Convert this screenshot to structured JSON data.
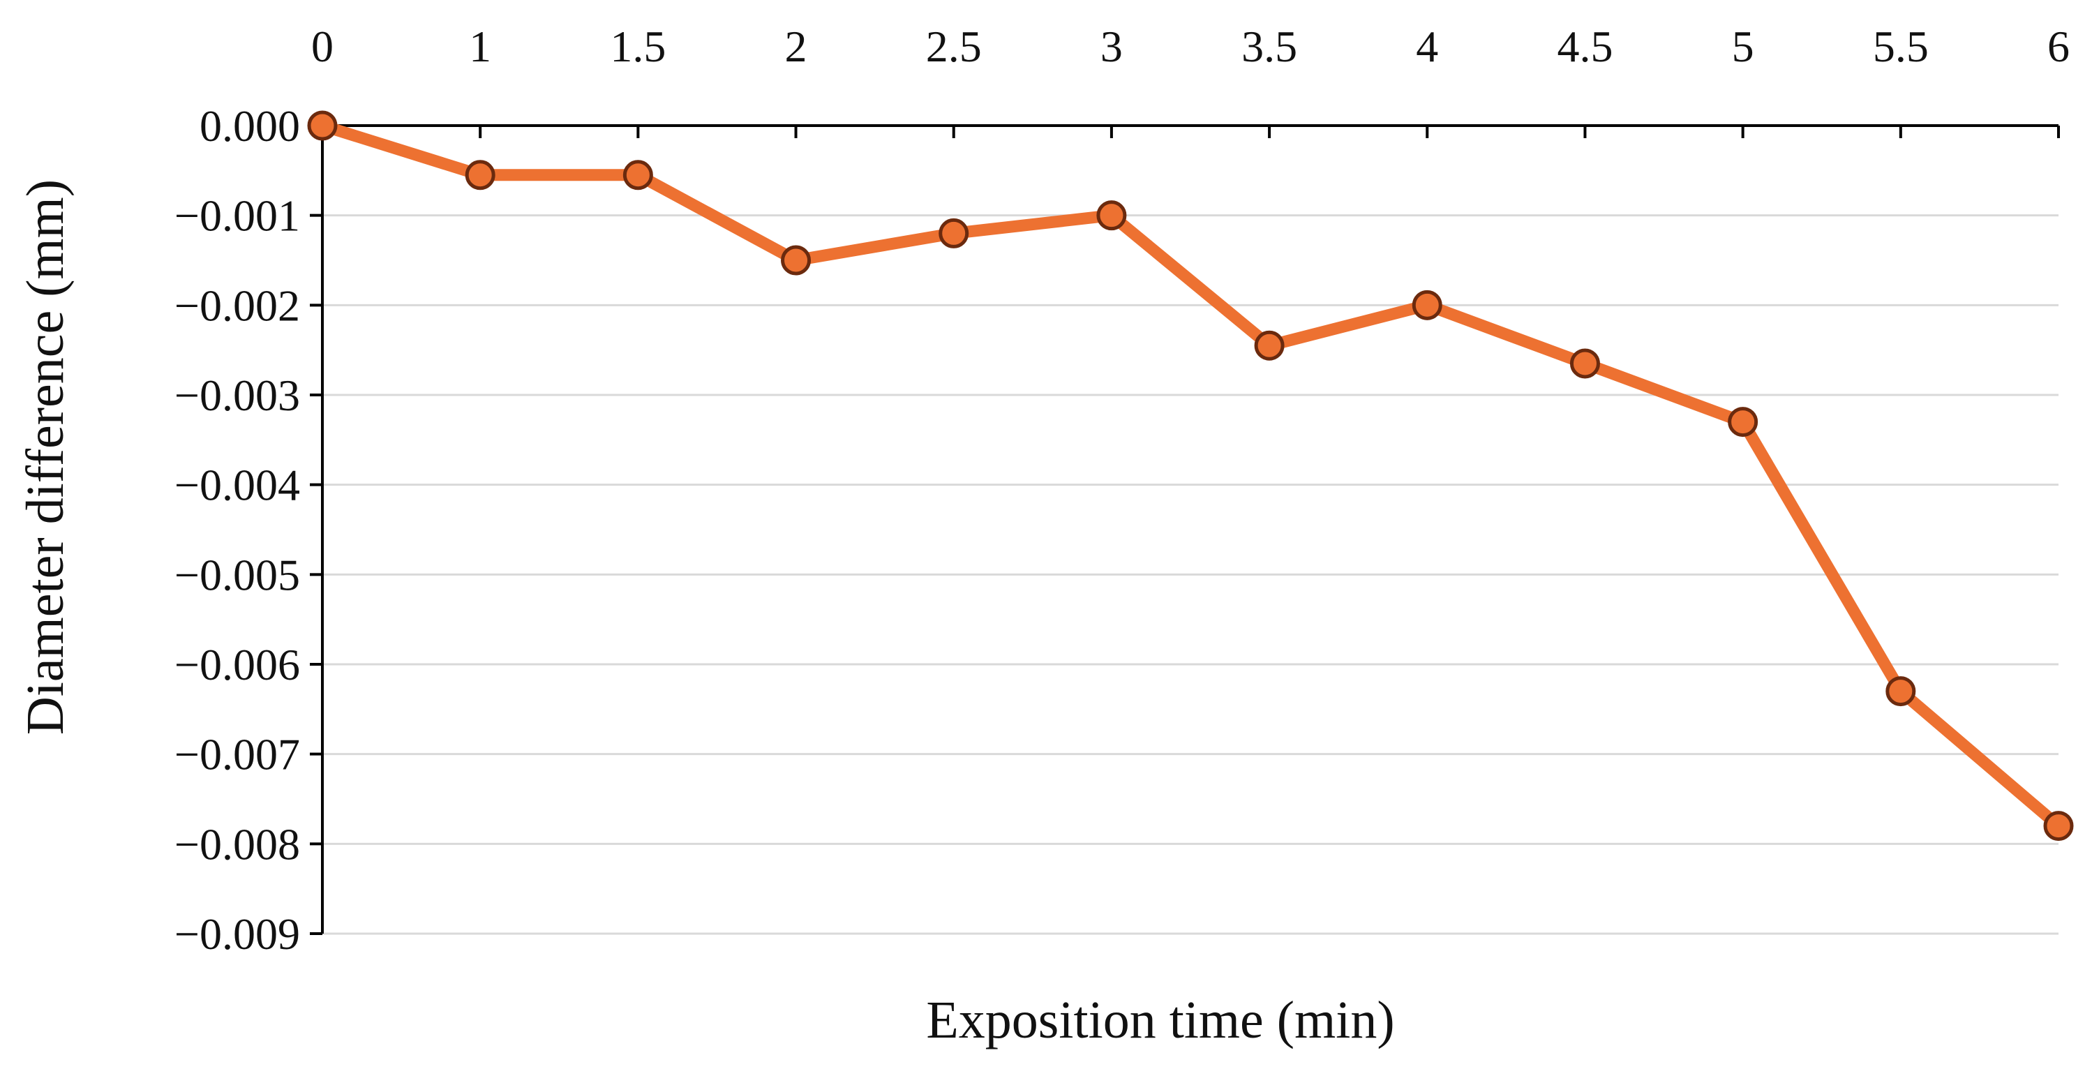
{
  "chart_data": {
    "type": "line",
    "title": "",
    "xlabel": "Exposition time (min)",
    "ylabel": "Diameter difference (mm)",
    "x_tick_labels": [
      "0",
      "1",
      "1.5",
      "2",
      "2.5",
      "3",
      "3.5",
      "4",
      "4.5",
      "5",
      "5.5",
      "6"
    ],
    "y_tick_labels": [
      "0.000",
      "−0.001",
      "−0.002",
      "−0.003",
      "−0.004",
      "−0.005",
      "−0.006",
      "−0.007",
      "−0.008",
      "−0.009"
    ],
    "y_ticks": [
      0,
      -0.001,
      -0.002,
      -0.003,
      -0.004,
      -0.005,
      -0.006,
      -0.007,
      -0.008,
      -0.009
    ],
    "ylim": [
      -0.009,
      0
    ],
    "x_axis_position": "top",
    "grid": true,
    "series": [
      {
        "values": [
          0,
          -0.00055,
          -0.00055,
          -0.0015,
          -0.0012,
          -0.001,
          -0.00245,
          -0.002,
          -0.00265,
          -0.0033,
          -0.0063,
          -0.0078
        ]
      }
    ],
    "colors": {
      "line": "#ED7131",
      "marker_fill": "#ED7131",
      "marker_edge": "#6B2A0E",
      "grid": "#D9D9D9",
      "axis": "#000000"
    }
  }
}
